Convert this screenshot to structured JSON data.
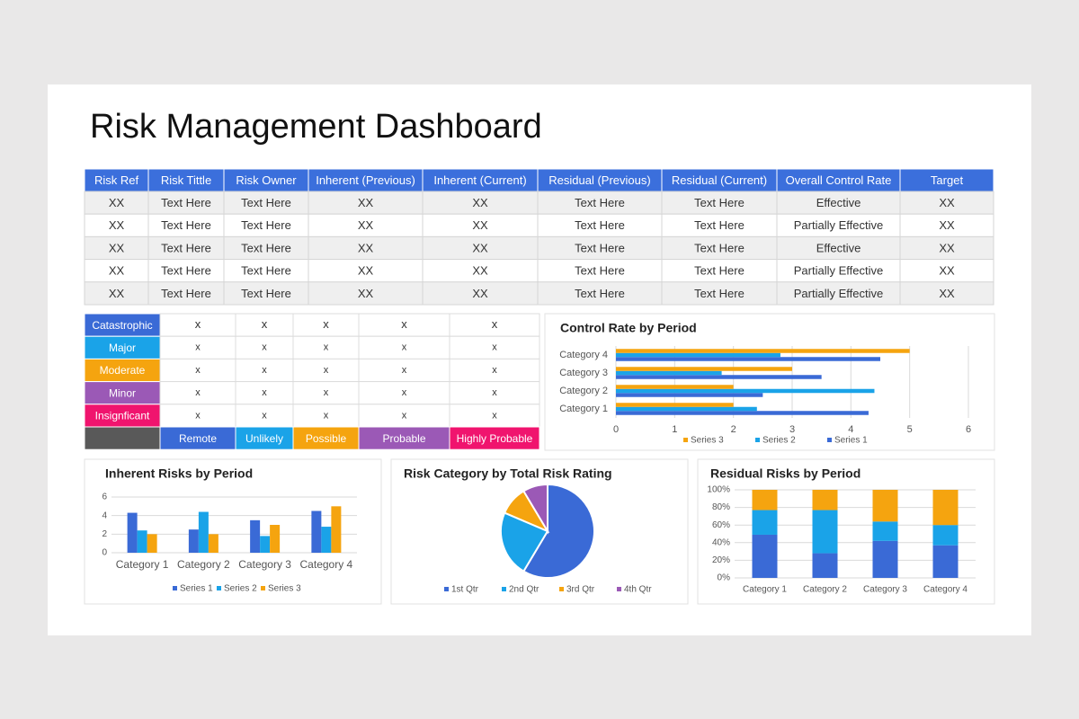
{
  "title": "Risk Management Dashboard",
  "table": {
    "header": [
      "Risk Ref",
      "Risk Tittle",
      "Risk Owner",
      "Inherent (Previous)",
      "Inherent (Current)",
      "Residual (Previous)",
      "Residual (Current)",
      "Overall Control Rate",
      "Target"
    ],
    "rows": [
      [
        "XX",
        "Text Here",
        "Text Here",
        "XX",
        "XX",
        "Text Here",
        "Text Here",
        "Effective",
        "XX"
      ],
      [
        "XX",
        "Text Here",
        "Text Here",
        "XX",
        "XX",
        "Text Here",
        "Text Here",
        "Partially Effective",
        "XX"
      ],
      [
        "XX",
        "Text Here",
        "Text Here",
        "XX",
        "XX",
        "Text Here",
        "Text Here",
        "Effective",
        "XX"
      ],
      [
        "XX",
        "Text Here",
        "Text Here",
        "XX",
        "XX",
        "Text Here",
        "Text Here",
        "Partially Effective",
        "XX"
      ],
      [
        "XX",
        "Text Here",
        "Text Here",
        "XX",
        "XX",
        "Text Here",
        "Text Here",
        "Partially Effective",
        "XX"
      ]
    ]
  },
  "matrix": {
    "rows": [
      {
        "label": "Catastrophic",
        "cells": [
          "x",
          "x",
          "x",
          "x",
          "x"
        ]
      },
      {
        "label": "Major",
        "cells": [
          "x",
          "x",
          "x",
          "x",
          "x"
        ]
      },
      {
        "label": "Moderate",
        "cells": [
          "x",
          "x",
          "x",
          "x",
          "x"
        ]
      },
      {
        "label": "Minor",
        "cells": [
          "x",
          "x",
          "x",
          "x",
          "x"
        ]
      },
      {
        "label": "Insignficant",
        "cells": [
          "x",
          "x",
          "x",
          "x",
          "x"
        ]
      }
    ],
    "columns": [
      "Remote",
      "Unlikely",
      "Possible",
      "Probable",
      "Highly Probable"
    ]
  },
  "chart_data": [
    {
      "type": "hbar",
      "title": "Control Rate by Period",
      "categories": [
        "Category 1",
        "Category 2",
        "Category 3",
        "Category 4"
      ],
      "series": [
        {
          "name": "Series 1",
          "color": "#3a6ad6",
          "values": [
            4.3,
            2.5,
            3.5,
            4.5
          ]
        },
        {
          "name": "Series 2",
          "color": "#1aa3e8",
          "values": [
            2.4,
            4.4,
            1.8,
            2.8
          ]
        },
        {
          "name": "Series 3",
          "color": "#f5a40f",
          "values": [
            2,
            2,
            3,
            5
          ]
        }
      ],
      "xlim": [
        0,
        6
      ],
      "xticks": [
        0,
        1,
        2,
        3,
        4,
        5,
        6
      ],
      "grid": true,
      "legend": "bottom"
    },
    {
      "type": "bar",
      "title": "Inherent Risks by Period",
      "categories": [
        "Category 1",
        "Category 2",
        "Category 3",
        "Category 4"
      ],
      "series": [
        {
          "name": "Series 1",
          "color": "#3a6ad6",
          "values": [
            4.3,
            2.5,
            3.5,
            4.5
          ]
        },
        {
          "name": "Series 2",
          "color": "#1aa3e8",
          "values": [
            2.4,
            4.4,
            1.8,
            2.8
          ]
        },
        {
          "name": "Series 3",
          "color": "#f5a40f",
          "values": [
            2,
            2,
            3,
            5
          ]
        }
      ],
      "ylim": [
        0,
        6
      ],
      "yticks": [
        0,
        2,
        4,
        6
      ],
      "grid": true,
      "legend": "bottom"
    },
    {
      "type": "pie",
      "title": "Risk Category by Total Risk Rating",
      "categories": [
        "1st Qtr",
        "2nd Qtr",
        "3rd Qtr",
        "4th Qtr"
      ],
      "values": [
        8.2,
        3.2,
        1.4,
        1.2
      ],
      "colors": [
        "#3a6ad6",
        "#1aa3e8",
        "#f5a40f",
        "#9b59b6"
      ],
      "legend": "bottom"
    },
    {
      "type": "stacked_bar",
      "title": "Residual Risks by Period",
      "categories": [
        "Category 1",
        "Category 2",
        "Category 3",
        "Category 4"
      ],
      "series": [
        {
          "color": "#3a6ad6",
          "values": [
            49,
            28,
            42,
            37
          ]
        },
        {
          "color": "#1aa3e8",
          "values": [
            28,
            49,
            22,
            23
          ]
        },
        {
          "color": "#f5a40f",
          "values": [
            23,
            23,
            36,
            40
          ]
        }
      ],
      "ylim": [
        0,
        100
      ],
      "yticks": [
        {
          "value": 0,
          "label": "0%"
        },
        {
          "value": 20,
          "label": "20%"
        },
        {
          "value": 40,
          "label": "40%"
        },
        {
          "value": 60,
          "label": "60%"
        },
        {
          "value": 80,
          "label": "80%"
        },
        {
          "value": 100,
          "label": "100%"
        }
      ],
      "grid": true
    }
  ]
}
